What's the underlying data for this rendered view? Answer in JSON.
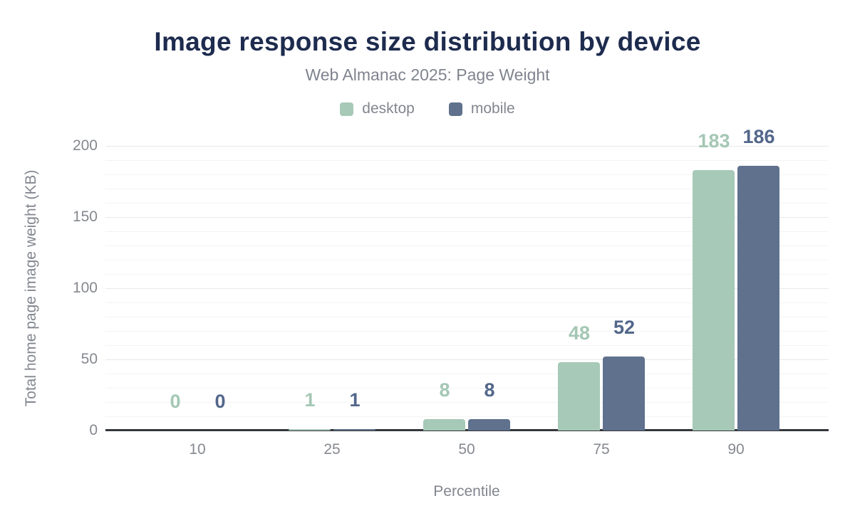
{
  "chart_data": {
    "type": "bar",
    "title": "Image response size distribution by device",
    "subtitle": "Web Almanac 2025: Page Weight",
    "xlabel": "Percentile",
    "ylabel": "Total home page image weight (KB)",
    "categories": [
      "10",
      "25",
      "50",
      "75",
      "90"
    ],
    "series": [
      {
        "name": "desktop",
        "values": [
          0,
          1,
          8,
          48,
          183
        ],
        "color": "#a7c9b7",
        "label_color": "#a4c7b4"
      },
      {
        "name": "mobile",
        "values": [
          0,
          1,
          8,
          52,
          186
        ],
        "color": "#5f718d",
        "label_color": "#53678b"
      }
    ],
    "ylim": [
      0,
      200
    ],
    "y_ticks": [
      0,
      50,
      100,
      150,
      200
    ],
    "y_minor_step": 10,
    "grid": true,
    "legend_position": "top",
    "data_labels": true
  }
}
